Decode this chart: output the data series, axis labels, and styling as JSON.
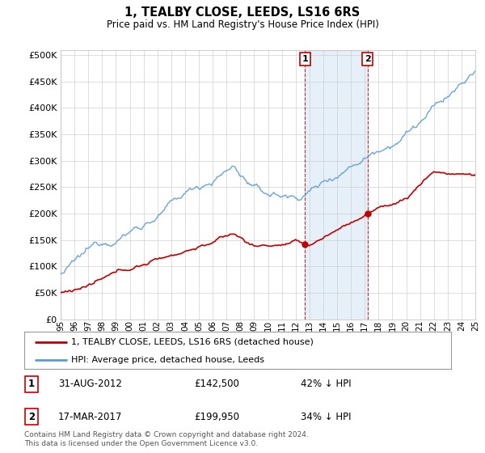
{
  "title": "1, TEALBY CLOSE, LEEDS, LS16 6RS",
  "subtitle": "Price paid vs. HM Land Registry's House Price Index (HPI)",
  "ytick_values": [
    0,
    50000,
    100000,
    150000,
    200000,
    250000,
    300000,
    350000,
    400000,
    450000,
    500000
  ],
  "hpi_color": "#5b9bd5",
  "price_color": "#c00000",
  "background_color": "#ffffff",
  "grid_color": "#d0d0d0",
  "purchase1": {
    "date": "31-AUG-2012",
    "price": 142500,
    "label": "1",
    "year": 2012.67
  },
  "purchase2": {
    "date": "17-MAR-2017",
    "price": 199950,
    "label": "2",
    "year": 2017.21
  },
  "legend_line1": "1, TEALBY CLOSE, LEEDS, LS16 6RS (detached house)",
  "legend_line2": "HPI: Average price, detached house, Leeds",
  "table_row1": [
    "1",
    "31-AUG-2012",
    "£142,500",
    "42% ↓ HPI"
  ],
  "table_row2": [
    "2",
    "17-MAR-2017",
    "£199,950",
    "34% ↓ HPI"
  ],
  "footnote": "Contains HM Land Registry data © Crown copyright and database right 2024.\nThis data is licensed under the Open Government Licence v3.0.",
  "xstart": 1995,
  "xend": 2025
}
